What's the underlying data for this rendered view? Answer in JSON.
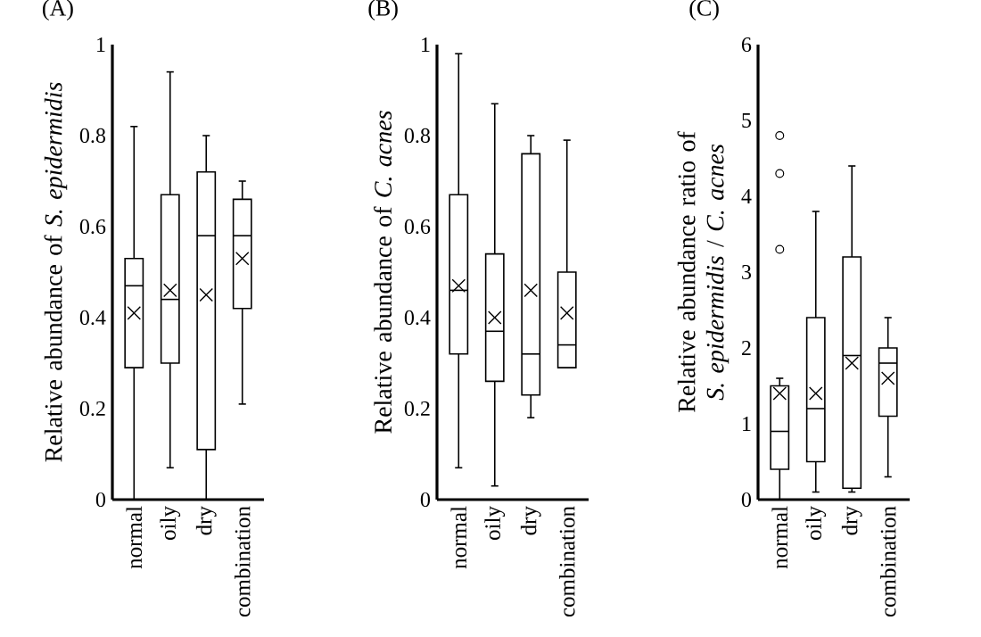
{
  "chart_data": [
    {
      "type": "box",
      "title": "(A)",
      "ylabel": "Relative abundance of *S. epidermidis*",
      "categories": [
        "normal",
        "oily",
        "dry",
        "combination"
      ],
      "ylim": [
        0,
        1
      ],
      "yticks": [
        0,
        0.2,
        0.4,
        0.6,
        0.8,
        1
      ],
      "boxes": [
        {
          "low": 0.0,
          "q1": 0.29,
          "median": 0.47,
          "q3": 0.53,
          "high": 0.82,
          "mean": 0.41
        },
        {
          "low": 0.07,
          "q1": 0.3,
          "median": 0.44,
          "q3": 0.67,
          "high": 0.94,
          "mean": 0.46
        },
        {
          "low": 0.0,
          "q1": 0.11,
          "median": 0.58,
          "q3": 0.72,
          "high": 0.8,
          "mean": 0.45
        },
        {
          "low": 0.21,
          "q1": 0.42,
          "median": 0.58,
          "q3": 0.66,
          "high": 0.7,
          "mean": 0.53
        }
      ]
    },
    {
      "type": "box",
      "title": "(B)",
      "ylabel": "Relative abundance of *C. acnes*",
      "categories": [
        "normal",
        "oily",
        "dry",
        "combination"
      ],
      "ylim": [
        0,
        1
      ],
      "yticks": [
        0,
        0.2,
        0.4,
        0.6,
        0.8,
        1
      ],
      "boxes": [
        {
          "low": 0.07,
          "q1": 0.32,
          "median": 0.46,
          "q3": 0.67,
          "high": 0.98,
          "mean": 0.47
        },
        {
          "low": 0.03,
          "q1": 0.26,
          "median": 0.37,
          "q3": 0.54,
          "high": 0.87,
          "mean": 0.4
        },
        {
          "low": 0.18,
          "q1": 0.23,
          "median": 0.32,
          "q3": 0.76,
          "high": 0.8,
          "mean": 0.46
        },
        {
          "low": 0.29,
          "q1": 0.29,
          "median": 0.34,
          "q3": 0.5,
          "high": 0.79,
          "mean": 0.41
        }
      ]
    },
    {
      "type": "box",
      "title": "(C)",
      "ylabel": "Relative abundance ratio of *S. epidermidis* / *C. acnes*",
      "categories": [
        "normal",
        "oily",
        "dry",
        "combination"
      ],
      "ylim": [
        0,
        6
      ],
      "yticks": [
        0,
        1,
        2,
        3,
        4,
        5,
        6
      ],
      "boxes": [
        {
          "low": 0.0,
          "q1": 0.4,
          "median": 0.9,
          "q3": 1.5,
          "high": 1.6,
          "mean": 1.4,
          "outliers": [
            3.3,
            4.3,
            4.8
          ]
        },
        {
          "low": 0.1,
          "q1": 0.5,
          "median": 1.2,
          "q3": 2.4,
          "high": 3.8,
          "mean": 1.4
        },
        {
          "low": 0.1,
          "q1": 0.15,
          "median": 1.9,
          "q3": 3.2,
          "high": 4.4,
          "mean": 1.8
        },
        {
          "low": 0.3,
          "q1": 1.1,
          "median": 1.8,
          "q3": 2.0,
          "high": 2.4,
          "mean": 1.6
        }
      ]
    }
  ]
}
